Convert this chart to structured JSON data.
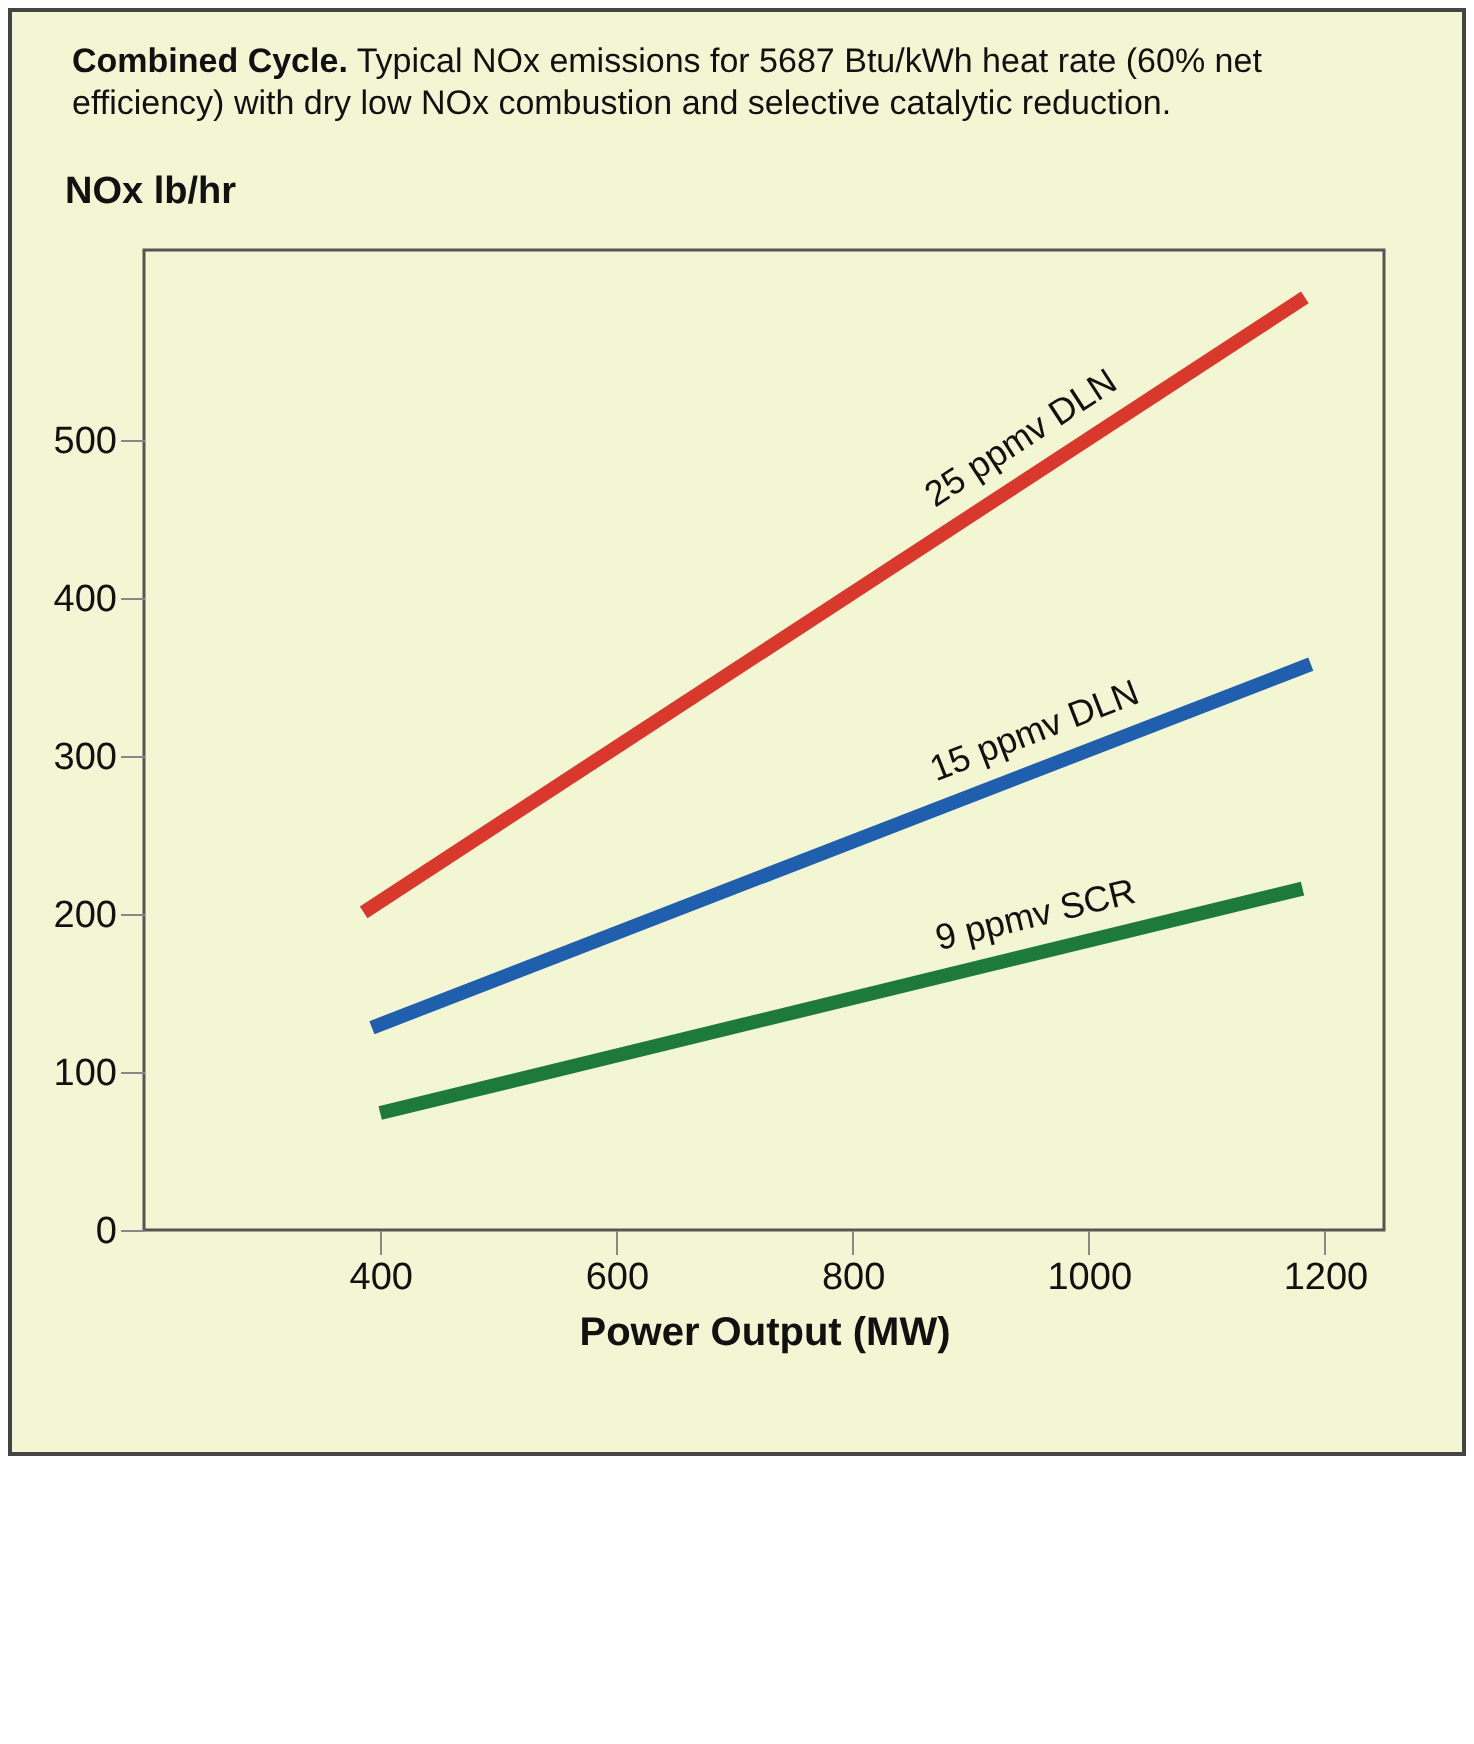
{
  "chart_data": {
    "type": "line",
    "title": "Combined Cycle. Typical NOx emissions for 5687 Btu/kWh heat rate (60% net efficiency) with dry low NOx combustion and selective catalytic reduction.",
    "xlabel": "Power Output (MW)",
    "ylabel": "NOx lb/hr",
    "xlim": [
      200,
      1250
    ],
    "ylim": [
      0,
      620
    ],
    "xticks": [
      400,
      600,
      800,
      1000,
      1200
    ],
    "yticks": [
      0,
      100,
      200,
      300,
      400,
      500
    ],
    "grid": false,
    "legend": false,
    "marker": "none",
    "line_style": "solid",
    "series": [
      {
        "name": "25 ppmv DLN",
        "color": "#d8392c",
        "x": [
          386,
          1183
        ],
        "values": [
          201,
          590
        ]
      },
      {
        "name": "15 ppmv DLN",
        "color": "#1f5fae",
        "x": [
          393,
          1188
        ],
        "values": [
          128,
          358
        ]
      },
      {
        "name": "9 ppmv SCR",
        "color": "#1e7a3a",
        "x": [
          400,
          1181
        ],
        "values": [
          74,
          216
        ]
      }
    ]
  }
}
